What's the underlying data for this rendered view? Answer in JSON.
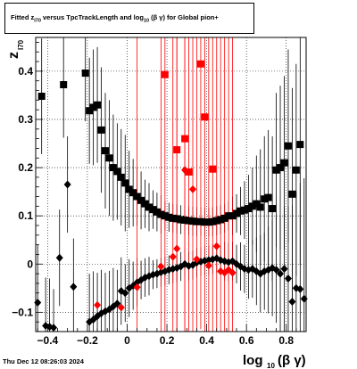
{
  "title_parts": {
    "a": "Fitted  z",
    "a_sub": "I70",
    "b": "  versus  TpcTrackLength and log",
    "b_sub": "10",
    "c": " (β  γ)  for Global pion+"
  },
  "date_stamp": "Thu Dec 12 08:26:03 2024",
  "chart_data": {
    "type": "scatter",
    "title": "Fitted z_I70 versus TpcTrackLength and log10(βγ) for Global pion+",
    "ylabel": "z_I70",
    "xlabel": "log10(β γ)",
    "ylabel_main": "z",
    "ylabel_sub": "I70",
    "xlabel_main": "log",
    "xlabel_sub": "10",
    "xlabel_tail": "(β γ)",
    "xlim": [
      -0.46,
      0.9
    ],
    "ylim": [
      -0.14,
      0.47
    ],
    "x_ticks": [
      -0.4,
      -0.2,
      0,
      0.2,
      0.4,
      0.6,
      0.8
    ],
    "x_tick_labels": [
      "−0.4",
      "−0.2",
      "0",
      "0.2",
      "0.4",
      "0.6",
      "0.8"
    ],
    "y_ticks": [
      -0.1,
      0,
      0.1,
      0.2,
      0.3,
      0.4
    ],
    "y_tick_labels": [
      "−0.1",
      "0",
      "0.1",
      "0.2",
      "0.3",
      "0.4"
    ],
    "grid": true,
    "series": [
      {
        "marker": "square",
        "color": "#000000",
        "points": [
          {
            "x": -0.43,
            "y": 0.348,
            "e": 0.12
          },
          {
            "x": -0.32,
            "y": 0.372,
            "e": 0.11
          },
          {
            "x": -0.21,
            "y": 0.396,
            "e": 0.1
          },
          {
            "x": -0.19,
            "y": 0.318,
            "e": 0.11
          },
          {
            "x": -0.17,
            "y": 0.325,
            "e": 0.12
          },
          {
            "x": -0.15,
            "y": 0.33,
            "e": 0.12
          },
          {
            "x": -0.13,
            "y": 0.278,
            "e": 0.13
          },
          {
            "x": -0.11,
            "y": 0.235,
            "e": 0.12
          },
          {
            "x": -0.09,
            "y": 0.22,
            "e": 0.12
          },
          {
            "x": -0.07,
            "y": 0.2,
            "e": 0.11
          },
          {
            "x": -0.05,
            "y": 0.192,
            "e": 0.1
          },
          {
            "x": -0.03,
            "y": 0.18,
            "e": 0.1
          },
          {
            "x": -0.01,
            "y": 0.168,
            "e": 0.1
          },
          {
            "x": 0.01,
            "y": 0.155,
            "e": 0.08
          },
          {
            "x": 0.03,
            "y": 0.148,
            "e": 0.07
          },
          {
            "x": 0.05,
            "y": 0.14,
            "e": 0.06
          },
          {
            "x": 0.07,
            "y": 0.132,
            "e": 0.06
          },
          {
            "x": 0.09,
            "y": 0.125,
            "e": 0.05
          },
          {
            "x": 0.11,
            "y": 0.118,
            "e": 0.05
          },
          {
            "x": 0.13,
            "y": 0.113,
            "e": 0.04
          },
          {
            "x": 0.15,
            "y": 0.108,
            "e": 0.04
          },
          {
            "x": 0.17,
            "y": 0.103,
            "e": 0.04
          },
          {
            "x": 0.19,
            "y": 0.1,
            "e": 0.03
          },
          {
            "x": 0.21,
            "y": 0.097,
            "e": 0.03
          },
          {
            "x": 0.23,
            "y": 0.095,
            "e": 0.03
          },
          {
            "x": 0.25,
            "y": 0.094,
            "e": 0.03
          },
          {
            "x": 0.27,
            "y": 0.092,
            "e": 0.03
          },
          {
            "x": 0.29,
            "y": 0.091,
            "e": 0.03
          },
          {
            "x": 0.31,
            "y": 0.09,
            "e": 0.03
          },
          {
            "x": 0.33,
            "y": 0.089,
            "e": 0.03
          },
          {
            "x": 0.35,
            "y": 0.088,
            "e": 0.03
          },
          {
            "x": 0.37,
            "y": 0.088,
            "e": 0.03
          },
          {
            "x": 0.39,
            "y": 0.087,
            "e": 0.03
          },
          {
            "x": 0.41,
            "y": 0.087,
            "e": 0.03
          },
          {
            "x": 0.43,
            "y": 0.088,
            "e": 0.03
          },
          {
            "x": 0.45,
            "y": 0.09,
            "e": 0.03
          },
          {
            "x": 0.47,
            "y": 0.092,
            "e": 0.03
          },
          {
            "x": 0.49,
            "y": 0.095,
            "e": 0.03
          },
          {
            "x": 0.51,
            "y": 0.1,
            "e": 0.03
          },
          {
            "x": 0.53,
            "y": 0.1,
            "e": 0.04
          },
          {
            "x": 0.55,
            "y": 0.105,
            "e": 0.04
          },
          {
            "x": 0.57,
            "y": 0.11,
            "e": 0.05
          },
          {
            "x": 0.59,
            "y": 0.112,
            "e": 0.06
          },
          {
            "x": 0.61,
            "y": 0.115,
            "e": 0.07
          },
          {
            "x": 0.63,
            "y": 0.12,
            "e": 0.08
          },
          {
            "x": 0.65,
            "y": 0.125,
            "e": 0.1
          },
          {
            "x": 0.67,
            "y": 0.118,
            "e": 0.12
          },
          {
            "x": 0.69,
            "y": 0.135,
            "e": 0.13
          },
          {
            "x": 0.71,
            "y": 0.138,
            "e": 0.14
          },
          {
            "x": 0.73,
            "y": 0.115,
            "e": 0.15
          },
          {
            "x": 0.75,
            "y": 0.195,
            "e": 0.16
          },
          {
            "x": 0.77,
            "y": 0.2,
            "e": 0.17
          },
          {
            "x": 0.79,
            "y": 0.21,
            "e": 0.18
          },
          {
            "x": 0.81,
            "y": 0.245,
            "e": 0.2
          },
          {
            "x": 0.83,
            "y": 0.145,
            "e": 0.22
          },
          {
            "x": 0.85,
            "y": 0.195,
            "e": 0.22
          },
          {
            "x": 0.87,
            "y": 0.248,
            "e": 0.25
          }
        ]
      },
      {
        "marker": "diamond",
        "color": "#000000",
        "points": [
          {
            "x": -0.45,
            "y": -0.08,
            "e": 0.12
          },
          {
            "x": -0.41,
            "y": -0.128,
            "e": 0.1
          },
          {
            "x": -0.39,
            "y": -0.13,
            "e": 0.1
          },
          {
            "x": -0.37,
            "y": -0.132,
            "e": 0.08
          },
          {
            "x": -0.34,
            "y": 0.013,
            "e": 0.1
          },
          {
            "x": -0.3,
            "y": 0.165,
            "e": 0.1
          },
          {
            "x": -0.27,
            "y": -0.047,
            "e": 0.1
          },
          {
            "x": -0.19,
            "y": -0.12,
            "e": 0.1
          },
          {
            "x": -0.17,
            "y": -0.115,
            "e": 0.1
          },
          {
            "x": -0.15,
            "y": -0.108,
            "e": 0.09
          },
          {
            "x": -0.13,
            "y": -0.102,
            "e": 0.09
          },
          {
            "x": -0.11,
            "y": -0.098,
            "e": 0.08
          },
          {
            "x": -0.09,
            "y": -0.094,
            "e": 0.08
          },
          {
            "x": -0.07,
            "y": -0.088,
            "e": 0.08
          },
          {
            "x": -0.05,
            "y": -0.082,
            "e": 0.07
          },
          {
            "x": -0.03,
            "y": -0.056,
            "e": 0.07
          },
          {
            "x": -0.01,
            "y": -0.06,
            "e": 0.06
          },
          {
            "x": 0.01,
            "y": -0.05,
            "e": 0.06
          },
          {
            "x": 0.03,
            "y": -0.045,
            "e": 0.05
          },
          {
            "x": 0.05,
            "y": -0.038,
            "e": 0.05
          },
          {
            "x": 0.07,
            "y": -0.033,
            "e": 0.04
          },
          {
            "x": 0.09,
            "y": -0.028,
            "e": 0.04
          },
          {
            "x": 0.11,
            "y": -0.025,
            "e": 0.04
          },
          {
            "x": 0.13,
            "y": -0.022,
            "e": 0.03
          },
          {
            "x": 0.15,
            "y": -0.02,
            "e": 0.03
          },
          {
            "x": 0.17,
            "y": -0.017,
            "e": 0.03
          },
          {
            "x": 0.19,
            "y": -0.015,
            "e": 0.03
          },
          {
            "x": 0.21,
            "y": -0.012,
            "e": 0.03
          },
          {
            "x": 0.23,
            "y": -0.01,
            "e": 0.03
          },
          {
            "x": 0.25,
            "y": -0.008,
            "e": 0.03
          },
          {
            "x": 0.27,
            "y": -0.005,
            "e": 0.03
          },
          {
            "x": 0.29,
            "y": 0.0,
            "e": 0.03
          },
          {
            "x": 0.31,
            "y": -0.004,
            "e": 0.03
          },
          {
            "x": 0.33,
            "y": -0.002,
            "e": 0.03
          },
          {
            "x": 0.35,
            "y": 0.003,
            "e": 0.03
          },
          {
            "x": 0.37,
            "y": 0.005,
            "e": 0.03
          },
          {
            "x": 0.39,
            "y": 0.007,
            "e": 0.03
          },
          {
            "x": 0.41,
            "y": 0.008,
            "e": 0.03
          },
          {
            "x": 0.43,
            "y": 0.01,
            "e": 0.03
          },
          {
            "x": 0.45,
            "y": 0.012,
            "e": 0.03
          },
          {
            "x": 0.47,
            "y": 0.008,
            "e": 0.03
          },
          {
            "x": 0.49,
            "y": 0.006,
            "e": 0.04
          },
          {
            "x": 0.51,
            "y": 0.004,
            "e": 0.04
          },
          {
            "x": 0.53,
            "y": 0.006,
            "e": 0.04
          },
          {
            "x": 0.55,
            "y": 0.0,
            "e": 0.04
          },
          {
            "x": 0.57,
            "y": -0.005,
            "e": 0.05
          },
          {
            "x": 0.59,
            "y": -0.01,
            "e": 0.05
          },
          {
            "x": 0.61,
            "y": -0.012,
            "e": 0.06
          },
          {
            "x": 0.63,
            "y": -0.01,
            "e": 0.06
          },
          {
            "x": 0.65,
            "y": -0.015,
            "e": 0.07
          },
          {
            "x": 0.67,
            "y": -0.02,
            "e": 0.08
          },
          {
            "x": 0.69,
            "y": -0.015,
            "e": 0.08
          },
          {
            "x": 0.71,
            "y": -0.012,
            "e": 0.09
          },
          {
            "x": 0.73,
            "y": -0.008,
            "e": 0.1
          },
          {
            "x": 0.75,
            "y": -0.012,
            "e": 0.11
          },
          {
            "x": 0.77,
            "y": -0.02,
            "e": 0.12
          },
          {
            "x": 0.79,
            "y": -0.01,
            "e": 0.13
          },
          {
            "x": 0.81,
            "y": -0.03,
            "e": 0.15
          },
          {
            "x": 0.83,
            "y": -0.078,
            "e": 0.2
          },
          {
            "x": 0.85,
            "y": -0.05,
            "e": 0.2
          },
          {
            "x": 0.87,
            "y": -0.052,
            "e": 0.22
          },
          {
            "x": 0.89,
            "y": -0.072,
            "e": 0.25
          }
        ]
      },
      {
        "marker": "square",
        "color": "#ff0000",
        "points": [
          {
            "x": 0.19,
            "y": 0.393,
            "e": 0.55
          },
          {
            "x": 0.25,
            "y": 0.237,
            "e": 0.55
          },
          {
            "x": 0.29,
            "y": 0.26,
            "e": 0.55
          },
          {
            "x": 0.31,
            "y": 0.191,
            "e": 0.55
          },
          {
            "x": 0.37,
            "y": 0.415,
            "e": 0.55
          },
          {
            "x": 0.39,
            "y": 0.305,
            "e": 0.55
          },
          {
            "x": 0.43,
            "y": 0.197,
            "e": 0.55
          }
        ]
      },
      {
        "marker": "diamond",
        "color": "#ff0000",
        "points": [
          {
            "x": -0.15,
            "y": -0.085,
            "e": 0.0
          },
          {
            "x": -0.03,
            "y": -0.09,
            "e": 0.0
          },
          {
            "x": 0.05,
            "y": -0.048,
            "e": 0.55
          },
          {
            "x": 0.17,
            "y": -0.005,
            "e": 0.55
          },
          {
            "x": 0.23,
            "y": 0.015,
            "e": 0.55
          },
          {
            "x": 0.25,
            "y": 0.032,
            "e": 0.55
          },
          {
            "x": 0.29,
            "y": 0.195,
            "e": 0.55
          },
          {
            "x": 0.33,
            "y": 0.155,
            "e": 0.55
          },
          {
            "x": 0.35,
            "y": 0.01,
            "e": 0.55
          },
          {
            "x": 0.41,
            "y": -0.003,
            "e": 0.55
          },
          {
            "x": 0.45,
            "y": 0.037,
            "e": 0.55
          },
          {
            "x": 0.47,
            "y": -0.015,
            "e": 0.55
          },
          {
            "x": 0.49,
            "y": -0.018,
            "e": 0.55
          },
          {
            "x": 0.51,
            "y": -0.012,
            "e": 0.55
          },
          {
            "x": 0.53,
            "y": -0.018,
            "e": 0.55
          }
        ]
      }
    ]
  }
}
